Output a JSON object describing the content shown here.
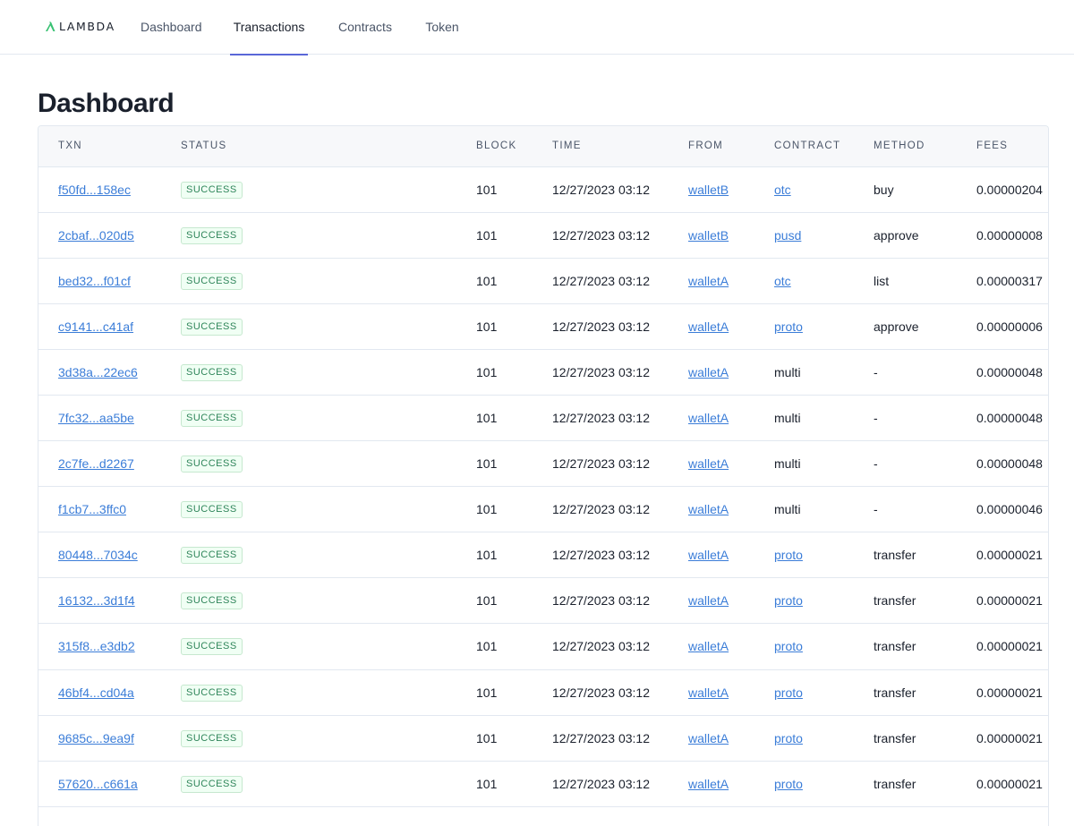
{
  "app": {
    "brand": "LAMBDA",
    "accent": "#5a67d8",
    "link_color": "#3b7dd8",
    "success_color": "#2f855a"
  },
  "nav": {
    "tabs": [
      {
        "label": "Dashboard",
        "active": false
      },
      {
        "label": "Transactions",
        "active": true
      },
      {
        "label": "Contracts",
        "active": false
      },
      {
        "label": "Token",
        "active": false
      }
    ]
  },
  "page": {
    "title": "Dashboard"
  },
  "table": {
    "columns": [
      "TXN",
      "STATUS",
      "BLOCK",
      "TIME",
      "FROM",
      "CONTRACT",
      "METHOD",
      "FEES"
    ],
    "rows": [
      {
        "txn": "f50fd...158ec",
        "status": "SUCCESS",
        "block": "101",
        "time": "12/27/2023 03:12",
        "from": "walletB",
        "contract": "otc",
        "contract_link": true,
        "method": "buy",
        "fees": "0.00000204"
      },
      {
        "txn": "2cbaf...020d5",
        "status": "SUCCESS",
        "block": "101",
        "time": "12/27/2023 03:12",
        "from": "walletB",
        "contract": "pusd",
        "contract_link": true,
        "method": "approve",
        "fees": "0.00000008"
      },
      {
        "txn": "bed32...f01cf",
        "status": "SUCCESS",
        "block": "101",
        "time": "12/27/2023 03:12",
        "from": "walletA",
        "contract": "otc",
        "contract_link": true,
        "method": "list",
        "fees": "0.00000317"
      },
      {
        "txn": "c9141...c41af",
        "status": "SUCCESS",
        "block": "101",
        "time": "12/27/2023 03:12",
        "from": "walletA",
        "contract": "proto",
        "contract_link": true,
        "method": "approve",
        "fees": "0.00000006"
      },
      {
        "txn": "3d38a...22ec6",
        "status": "SUCCESS",
        "block": "101",
        "time": "12/27/2023 03:12",
        "from": "walletA",
        "contract": "multi",
        "contract_link": false,
        "method": "-",
        "fees": "0.00000048"
      },
      {
        "txn": "7fc32...aa5be",
        "status": "SUCCESS",
        "block": "101",
        "time": "12/27/2023 03:12",
        "from": "walletA",
        "contract": "multi",
        "contract_link": false,
        "method": "-",
        "fees": "0.00000048"
      },
      {
        "txn": "2c7fe...d2267",
        "status": "SUCCESS",
        "block": "101",
        "time": "12/27/2023 03:12",
        "from": "walletA",
        "contract": "multi",
        "contract_link": false,
        "method": "-",
        "fees": "0.00000048"
      },
      {
        "txn": "f1cb7...3ffc0",
        "status": "SUCCESS",
        "block": "101",
        "time": "12/27/2023 03:12",
        "from": "walletA",
        "contract": "multi",
        "contract_link": false,
        "method": "-",
        "fees": "0.00000046"
      },
      {
        "txn": "80448...7034c",
        "status": "SUCCESS",
        "block": "101",
        "time": "12/27/2023 03:12",
        "from": "walletA",
        "contract": "proto",
        "contract_link": true,
        "method": "transfer",
        "fees": "0.00000021"
      },
      {
        "txn": "16132...3d1f4",
        "status": "SUCCESS",
        "block": "101",
        "time": "12/27/2023 03:12",
        "from": "walletA",
        "contract": "proto",
        "contract_link": true,
        "method": "transfer",
        "fees": "0.00000021"
      },
      {
        "txn": "315f8...e3db2",
        "status": "SUCCESS",
        "block": "101",
        "time": "12/27/2023 03:12",
        "from": "walletA",
        "contract": "proto",
        "contract_link": true,
        "method": "transfer",
        "fees": "0.00000021"
      },
      {
        "txn": "46bf4...cd04a",
        "status": "SUCCESS",
        "block": "101",
        "time": "12/27/2023 03:12",
        "from": "walletA",
        "contract": "proto",
        "contract_link": true,
        "method": "transfer",
        "fees": "0.00000021"
      },
      {
        "txn": "9685c...9ea9f",
        "status": "SUCCESS",
        "block": "101",
        "time": "12/27/2023 03:12",
        "from": "walletA",
        "contract": "proto",
        "contract_link": true,
        "method": "transfer",
        "fees": "0.00000021"
      },
      {
        "txn": "57620...c661a",
        "status": "SUCCESS",
        "block": "101",
        "time": "12/27/2023 03:12",
        "from": "walletA",
        "contract": "proto",
        "contract_link": true,
        "method": "transfer",
        "fees": "0.00000021"
      }
    ]
  }
}
